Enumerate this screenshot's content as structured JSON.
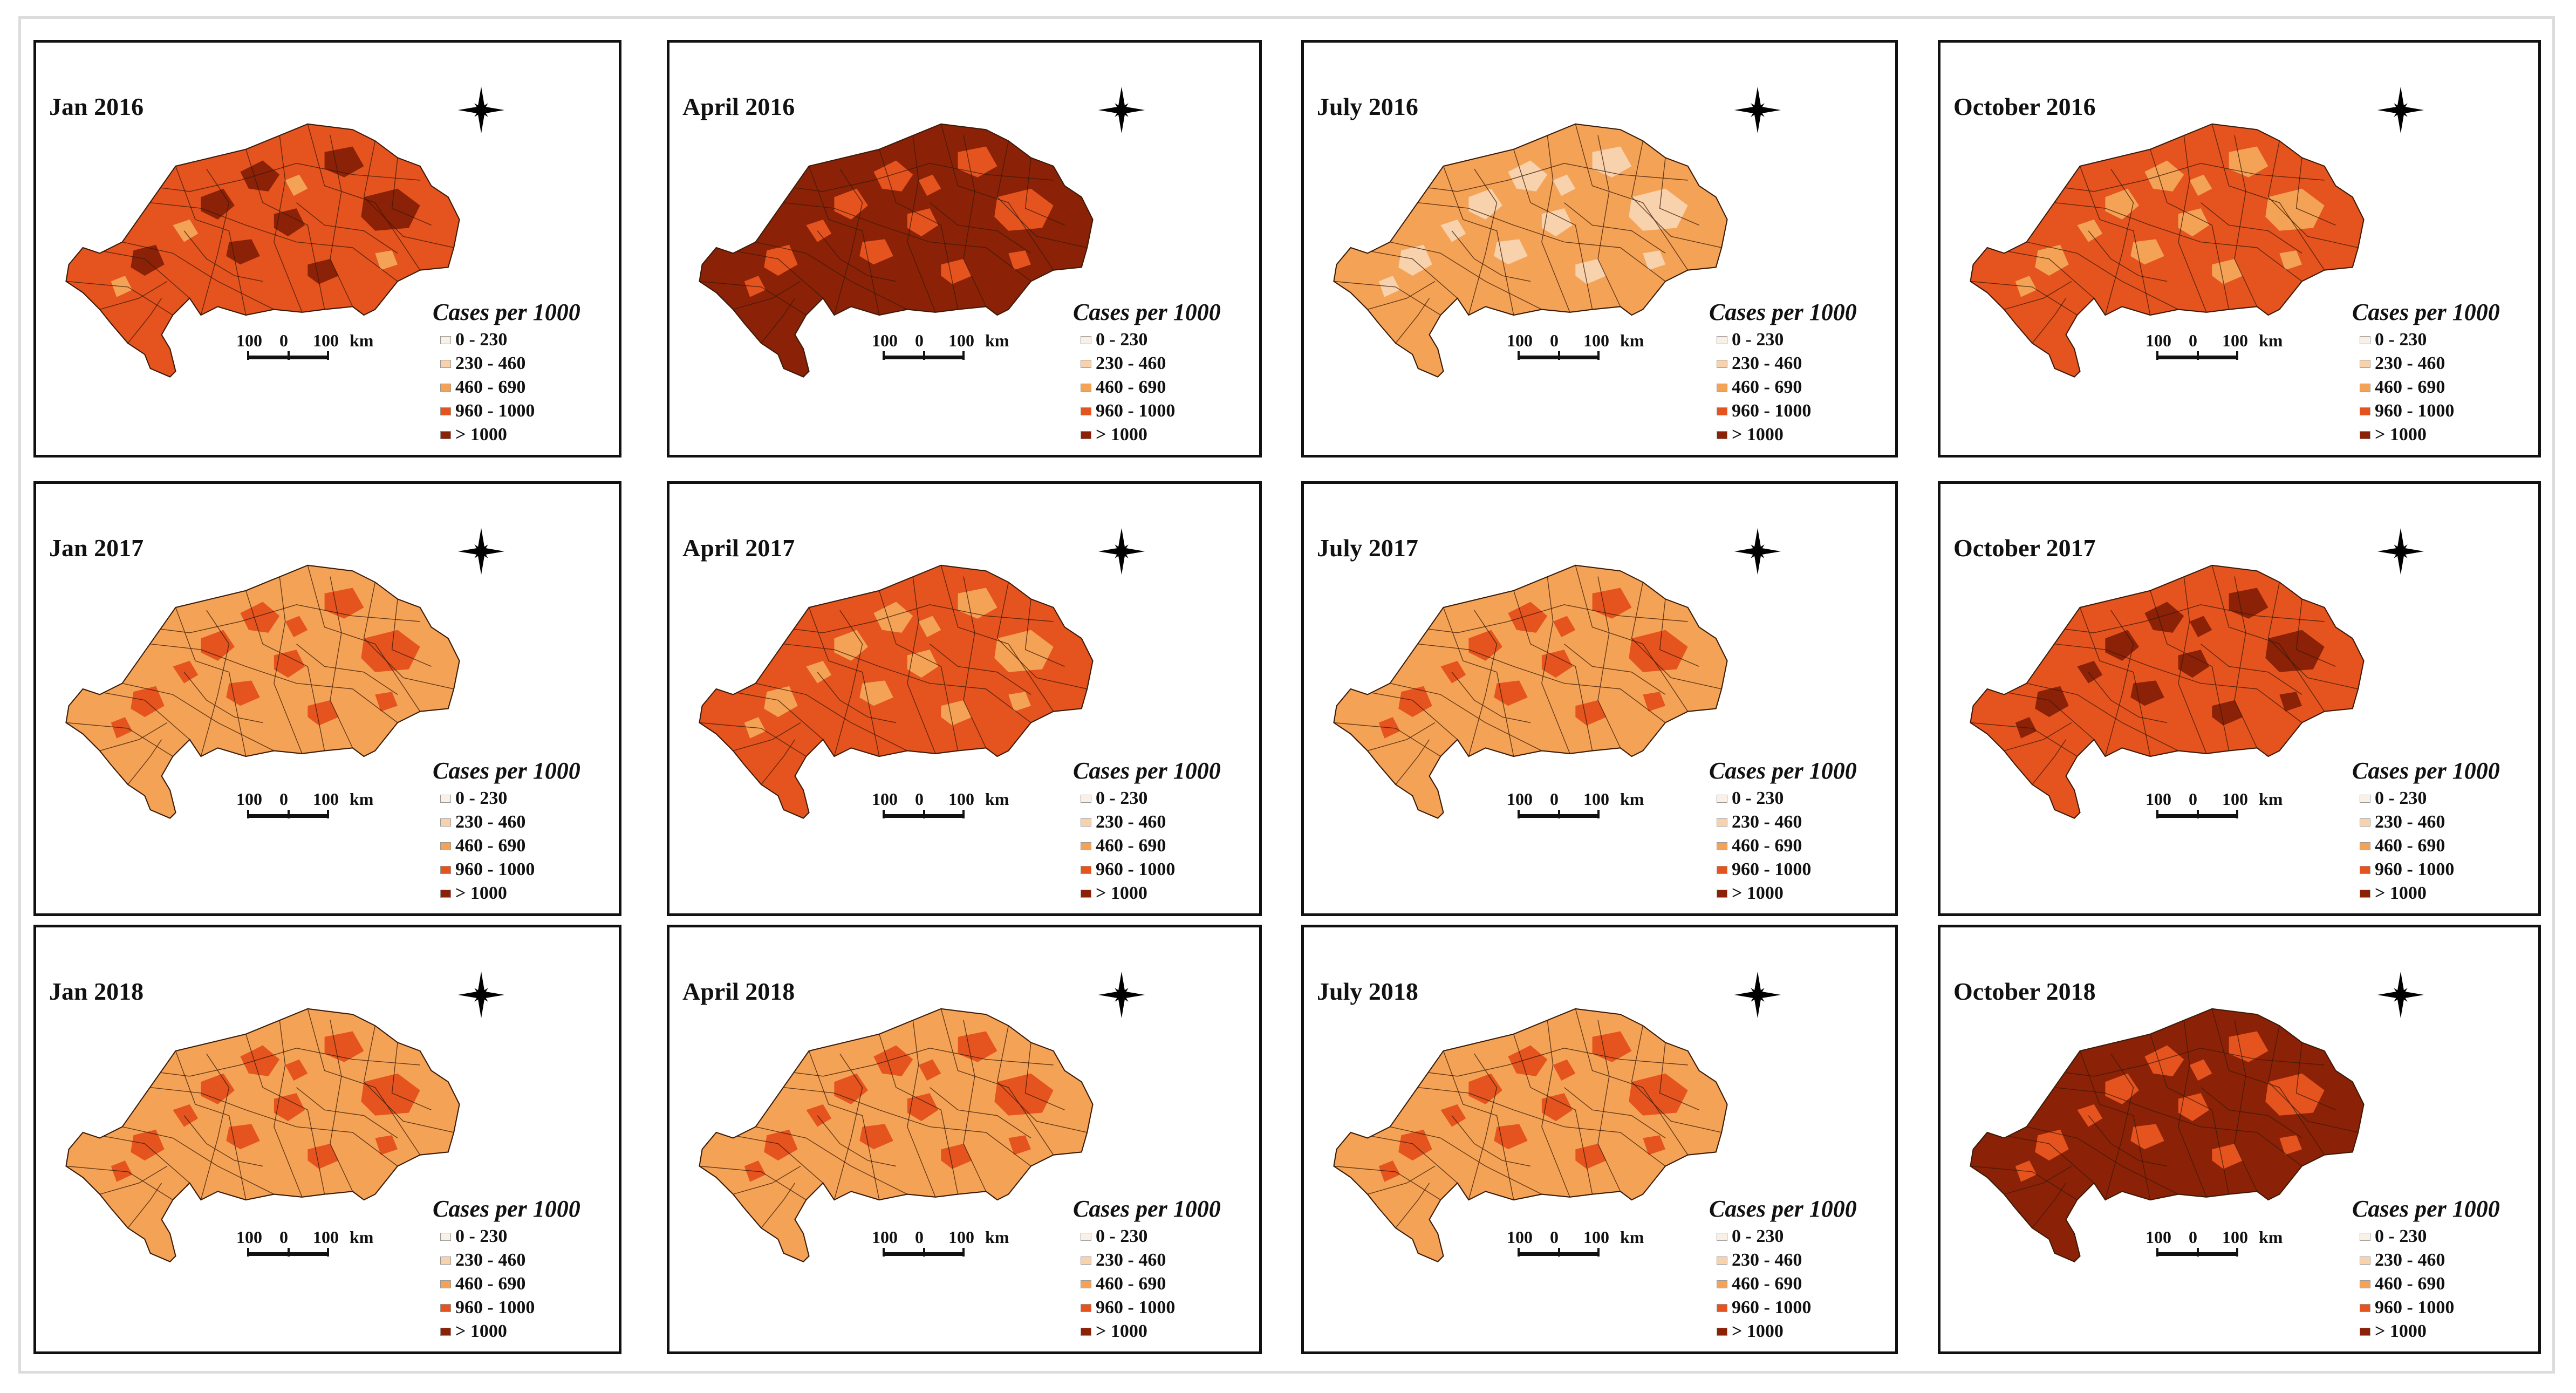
{
  "legend": {
    "title": "Cases per 1000",
    "scale_labels": [
      "100",
      "0",
      "100",
      "km"
    ],
    "classes": [
      {
        "label": "0 - 230",
        "color": "#fbf0e6"
      },
      {
        "label": "230 - 460",
        "color": "#f7d2ad"
      },
      {
        "label": "460 - 690",
        "color": "#f4a356"
      },
      {
        "label": "960 - 1000",
        "color": "#e5531f"
      },
      {
        "label": "> 1000",
        "color": "#8b2106"
      }
    ]
  },
  "panels": [
    {
      "title": "Jan 2016",
      "base_class": 3,
      "highlight_class": 4,
      "minor_class": 2
    },
    {
      "title": "April 2016",
      "base_class": 4,
      "highlight_class": 3,
      "minor_class": 3
    },
    {
      "title": "July 2016",
      "base_class": 2,
      "highlight_class": 1,
      "minor_class": 1
    },
    {
      "title": "October 2016",
      "base_class": 3,
      "highlight_class": 2,
      "minor_class": 2
    },
    {
      "title": "Jan 2017",
      "base_class": 2,
      "highlight_class": 3,
      "minor_class": 3
    },
    {
      "title": "April 2017",
      "base_class": 3,
      "highlight_class": 2,
      "minor_class": 2
    },
    {
      "title": "July 2017",
      "base_class": 2,
      "highlight_class": 3,
      "minor_class": 3
    },
    {
      "title": "October 2017",
      "base_class": 3,
      "highlight_class": 4,
      "minor_class": 4
    },
    {
      "title": "Jan 2018",
      "base_class": 2,
      "highlight_class": 3,
      "minor_class": 3
    },
    {
      "title": "April 2018",
      "base_class": 2,
      "highlight_class": 3,
      "minor_class": 3
    },
    {
      "title": "July 2018",
      "base_class": 2,
      "highlight_class": 3,
      "minor_class": 3
    },
    {
      "title": "October 2018",
      "base_class": 4,
      "highlight_class": 3,
      "minor_class": 3
    }
  ]
}
